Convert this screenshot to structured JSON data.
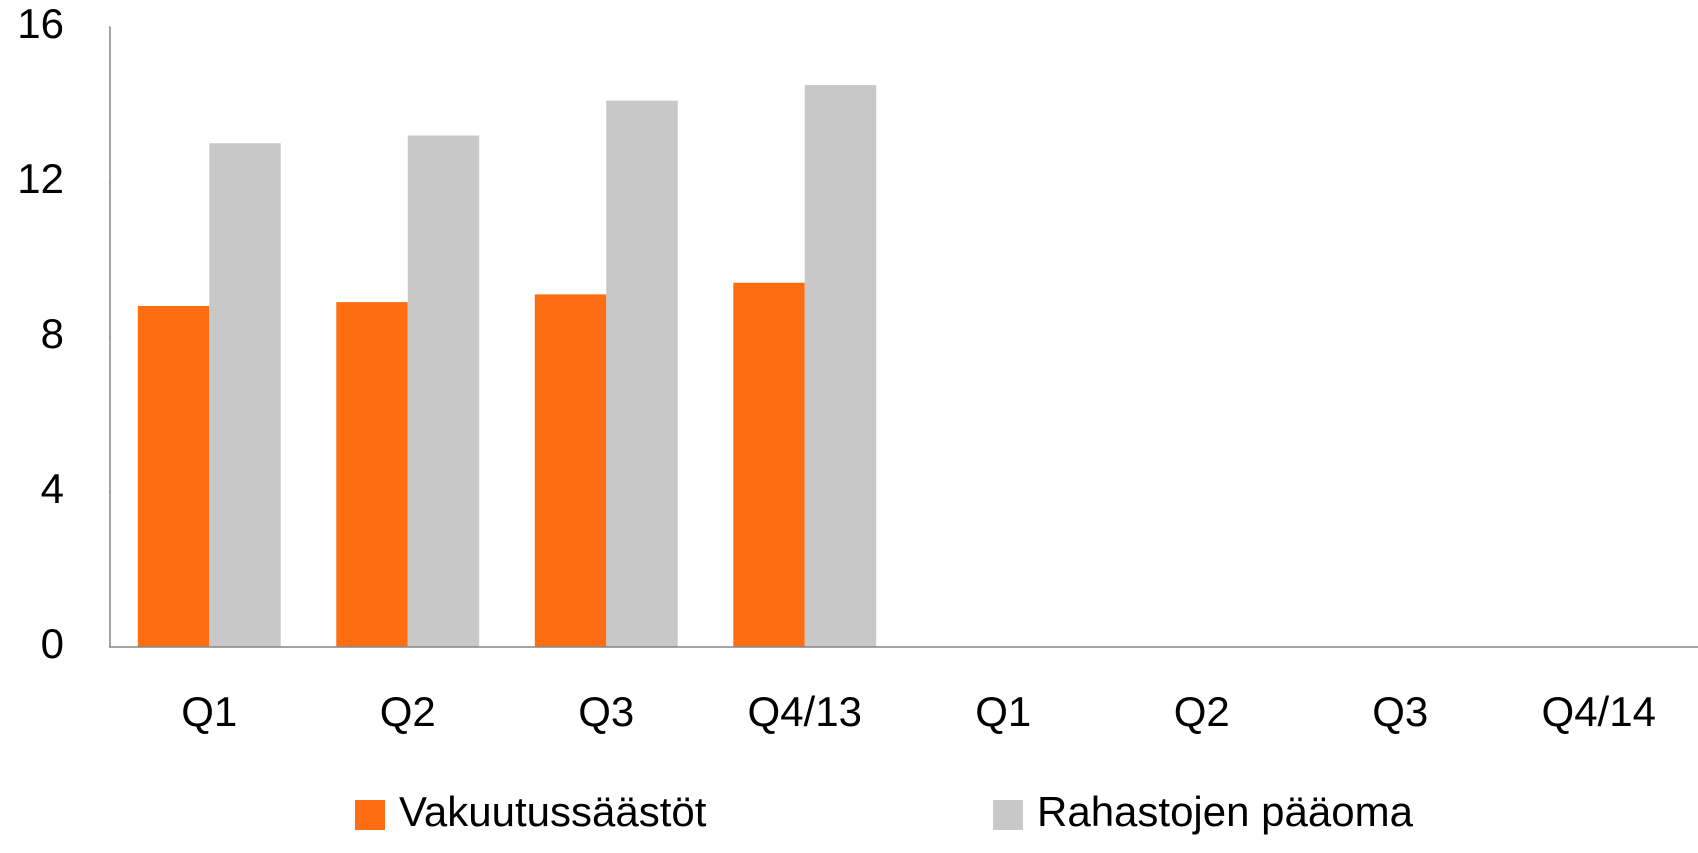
{
  "chart_data": {
    "type": "bar",
    "categories": [
      "Q1",
      "Q2",
      "Q3",
      "Q4/13",
      "Q1",
      "Q2",
      "Q3",
      "Q4/14"
    ],
    "series": [
      {
        "name": "Vakuutussäästöt",
        "color": "#ff6d12",
        "values": [
          8.8,
          8.9,
          9.1,
          9.4,
          null,
          null,
          null,
          null
        ]
      },
      {
        "name": "Rahastojen pääoma",
        "color": "#c8c8c8",
        "values": [
          13.0,
          13.2,
          14.1,
          14.5,
          null,
          null,
          null,
          null
        ]
      }
    ],
    "ylim": [
      0,
      16
    ],
    "yticks": [
      0,
      4,
      8,
      12,
      16
    ],
    "grid": false,
    "legend": "bottom"
  }
}
